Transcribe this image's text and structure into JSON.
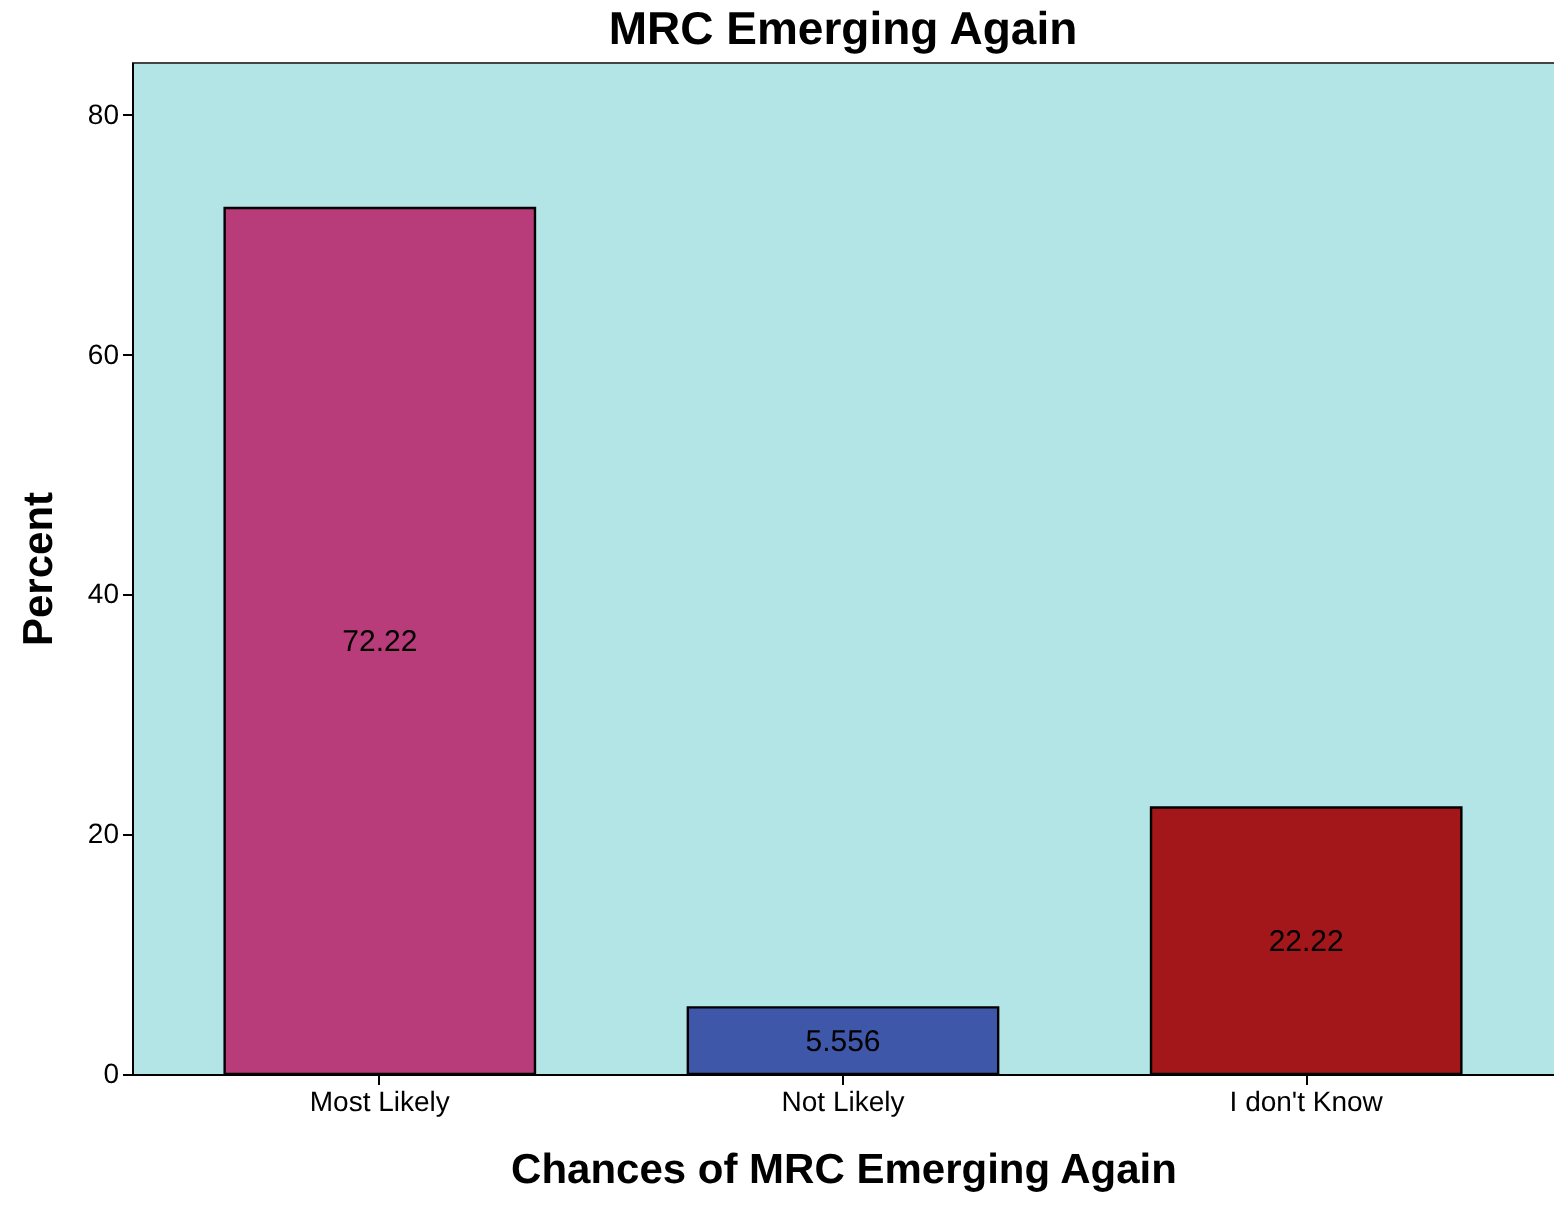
{
  "chart_data": {
    "type": "bar",
    "title": "MRC Emerging Again",
    "xlabel": "Chances of MRC Emerging Again",
    "ylabel": "Percent",
    "categories": [
      "Most Likely",
      "Not  Likely",
      "I don't Know"
    ],
    "values": [
      72.22,
      5.556,
      22.22
    ],
    "colors": [
      "#b83b7a",
      "#3f57a8",
      "#a3161a"
    ],
    "ylim": [
      0,
      84.4
    ],
    "yticks": [
      0,
      20,
      40,
      60,
      80
    ],
    "grid": false,
    "data_labels": true
  }
}
